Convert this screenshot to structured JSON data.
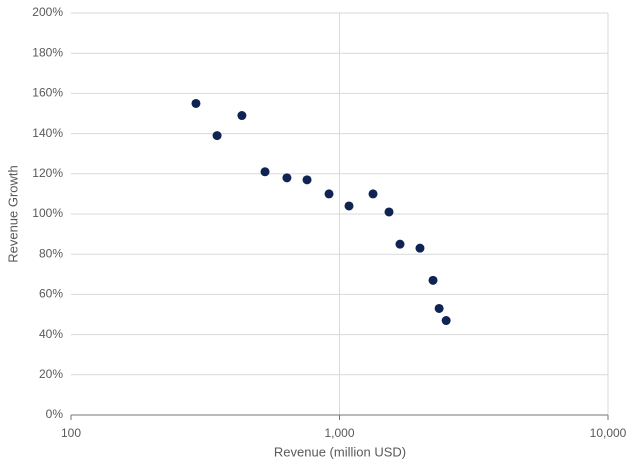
{
  "chart_data": {
    "type": "scatter",
    "x_label": "Revenue (million USD)",
    "y_label": "Revenue Growth",
    "x": [
      292,
      350,
      433,
      528,
      637,
      757,
      914,
      1085,
      1333,
      1529,
      1680,
      1994,
      2230,
      2350,
      2496
    ],
    "values": [
      155,
      139,
      149,
      121,
      118,
      117,
      110,
      104,
      110,
      101,
      85,
      83,
      67,
      53,
      47
    ],
    "color": "#0f2452",
    "xscale": "log",
    "xlim": [
      100,
      10000
    ],
    "xticks": [
      100,
      {
        "value": 1000,
        "label": "1,000"
      },
      {
        "value": 10000,
        "label": "10,000"
      }
    ],
    "ylim": [
      0,
      200
    ],
    "yticks": [
      {
        "value": 0,
        "label": "0%"
      },
      {
        "value": 20,
        "label": "20%"
      },
      {
        "value": 40,
        "label": "40%"
      },
      {
        "value": 60,
        "label": "60%"
      },
      {
        "value": 80,
        "label": "80%"
      },
      {
        "value": 100,
        "label": "100%"
      },
      {
        "value": 120,
        "label": "120%"
      },
      {
        "value": 140,
        "label": "140%"
      },
      {
        "value": 160,
        "label": "160%"
      },
      {
        "value": 180,
        "label": "180%"
      },
      {
        "value": 200,
        "label": "200%"
      }
    ],
    "grid": true
  }
}
